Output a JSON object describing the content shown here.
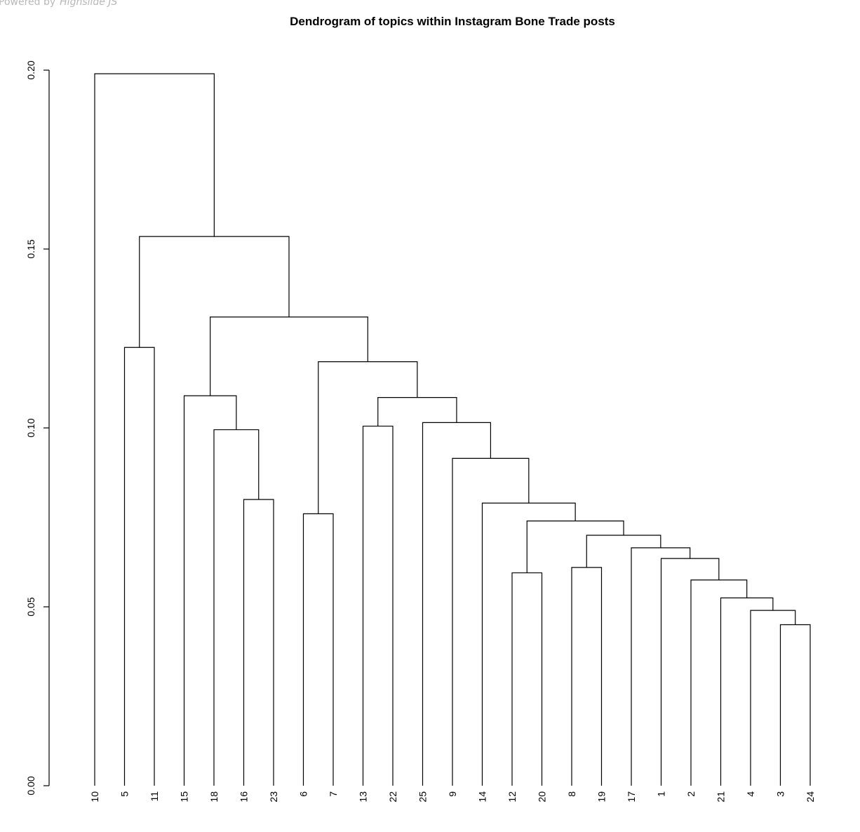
{
  "watermark": {
    "prefix": "Powered by",
    "brand": "Highslide JS"
  },
  "chart_data": {
    "type": "dendrogram",
    "title": "Dendrogram of topics within Instagram Bone Trade posts",
    "xlabel": "",
    "ylabel": "",
    "ylim": [
      0,
      0.2
    ],
    "yticks": [
      "0.00",
      "0.05",
      "0.10",
      "0.15",
      "0.20"
    ],
    "grid": false,
    "leaf_order": [
      "10",
      "5",
      "11",
      "15",
      "18",
      "16",
      "23",
      "6",
      "7",
      "13",
      "22",
      "25",
      "9",
      "14",
      "12",
      "20",
      "8",
      "19",
      "17",
      "1",
      "2",
      "21",
      "4",
      "3",
      "24"
    ],
    "merges": [
      {
        "left": "3",
        "right": "24",
        "height": 0.045
      },
      {
        "left": "4",
        "right": "3+24",
        "height": 0.049
      },
      {
        "left": "21",
        "right": "4+3+24",
        "height": 0.0525
      },
      {
        "left": "2",
        "right": "21+4+3+24",
        "height": 0.0575
      },
      {
        "left": "12",
        "right": "20",
        "height": 0.0595
      },
      {
        "left": "8",
        "right": "19",
        "height": 0.061
      },
      {
        "left": "1",
        "right": "2+21+4+3+24",
        "height": 0.0635
      },
      {
        "left": "17",
        "right": "1+2+21+4+3+24",
        "height": 0.0665
      },
      {
        "left": "8+19",
        "right": "17+1+2+21+4+3+24",
        "height": 0.07
      },
      {
        "left": "12+20",
        "right": "8+19+17+1+2+21+4+3+24",
        "height": 0.074
      },
      {
        "left": "6",
        "right": "7",
        "height": 0.076
      },
      {
        "left": "14",
        "right": "12+20+8+19+17+1+2+21+4+3+24",
        "height": 0.079
      },
      {
        "left": "16",
        "right": "23",
        "height": 0.08
      },
      {
        "left": "9",
        "right": "14+…",
        "height": 0.0915
      },
      {
        "left": "18",
        "right": "16+23",
        "height": 0.0995
      },
      {
        "left": "13",
        "right": "22",
        "height": 0.1005
      },
      {
        "left": "25",
        "right": "9+…",
        "height": 0.1015
      },
      {
        "left": "13+22",
        "right": "25+…",
        "height": 0.1085
      },
      {
        "left": "15",
        "right": "18+16+23",
        "height": 0.109
      },
      {
        "left": "6+7",
        "right": "13+22+25+…",
        "height": 0.1185
      },
      {
        "left": "5",
        "right": "11",
        "height": 0.1225
      },
      {
        "left": "15+18+16+23",
        "right": "6+7+…",
        "height": 0.131
      },
      {
        "left": "5+11",
        "right": "15+…",
        "height": 0.1535
      },
      {
        "left": "10",
        "right": "5+11+…",
        "height": 0.199
      }
    ]
  }
}
